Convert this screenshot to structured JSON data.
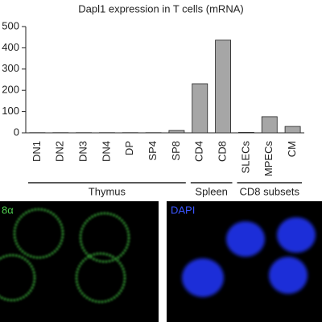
{
  "chart_data": {
    "type": "bar",
    "title": "Dapl1 expression in T cells (mRNA)",
    "categories": [
      "DN1",
      "DN2",
      "DN3",
      "DN4",
      "DP",
      "SP4",
      "SP8",
      "CD4",
      "CD8",
      "SLECs",
      "MPECs",
      "CM"
    ],
    "values": [
      1,
      1,
      1,
      1,
      1,
      1,
      11,
      231,
      436,
      2,
      76,
      30
    ],
    "color": "#a6a6a6",
    "ylim": [
      0,
      500
    ],
    "yticks": [
      0,
      100,
      200,
      300,
      400,
      500
    ],
    "groups": [
      "Thymus",
      "Spleen",
      "CD8 subsets"
    ]
  },
  "panels": {
    "left_label": "8α",
    "right_label": "DAPI"
  }
}
